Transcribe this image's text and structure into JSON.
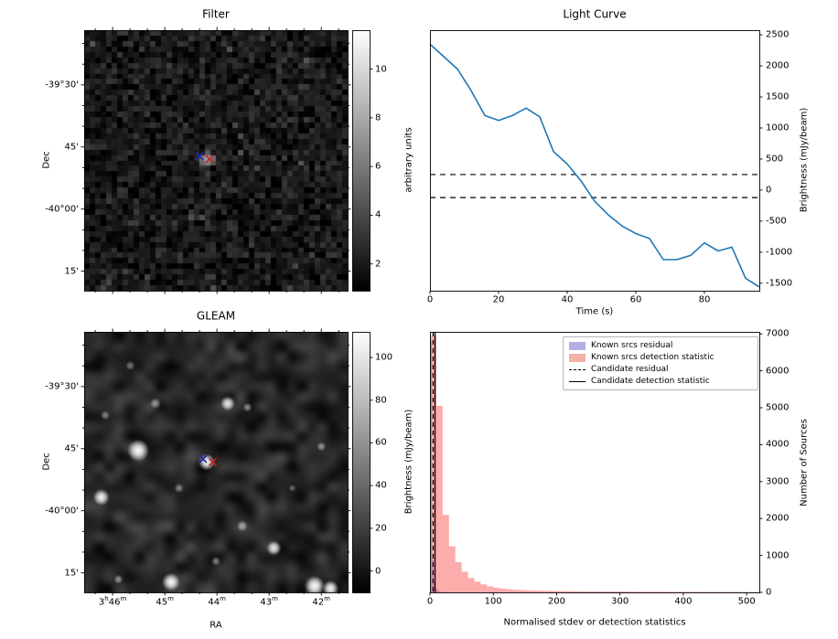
{
  "chart_data": [
    {
      "panel": "filter",
      "type": "heatmap",
      "title": "Filter",
      "xlabel": "",
      "ylabel": "Dec",
      "y_tick_labels": [
        "-39°30'",
        "45'",
        "-40°00'",
        "15'"
      ],
      "colorbar": {
        "label": "arbitrary units",
        "ticks": [
          2,
          4,
          6,
          8,
          10
        ],
        "vmin": 0.9,
        "vmax": 11.6
      },
      "image": "noisy dark grayscale filter map with faint central source",
      "markers": [
        {
          "name": "candidate",
          "symbol": "x",
          "color": "#2222aa",
          "fx": 0.4375,
          "fy": 0.484
        },
        {
          "name": "catalog",
          "symbol": "x",
          "color": "#cc2222",
          "fx": 0.4757,
          "fy": 0.4947
        }
      ]
    },
    {
      "panel": "light_curve",
      "type": "line",
      "title": "Light Curve",
      "xlabel": "Time (s)",
      "ylabel": "Brightness (mJy/beam)",
      "xlim": [
        0,
        96
      ],
      "ylim": [
        -1620,
        2575
      ],
      "x_ticks": [
        0,
        20,
        40,
        60,
        80
      ],
      "y_ticks": [
        2500,
        2000,
        1500,
        1000,
        500,
        0,
        -500,
        -1000,
        -1500
      ],
      "line_color": "#1f77b4",
      "series": [
        {
          "name": "candidate brightness",
          "x": [
            0,
            4,
            8,
            12,
            16,
            20,
            24,
            28,
            32,
            36,
            40,
            44,
            48,
            52,
            56,
            60,
            64,
            68,
            72,
            76,
            80,
            84,
            88,
            92,
            96
          ],
          "y": [
            2350,
            2150,
            1950,
            1600,
            1200,
            1120,
            1200,
            1320,
            1180,
            620,
            420,
            150,
            -180,
            -400,
            -580,
            -700,
            -780,
            -1120,
            -1120,
            -1050,
            -850,
            -980,
            -920,
            -1420,
            -1560
          ]
        }
      ],
      "threshold_lines": [
        {
          "style": "dashed",
          "y": 250
        },
        {
          "style": "dashed",
          "y": -120
        }
      ]
    },
    {
      "panel": "gleam",
      "type": "heatmap",
      "title": "GLEAM",
      "xlabel": "RA",
      "ylabel": "Dec",
      "x_tick_labels": [
        "3h46m",
        "45m",
        "44m",
        "43m",
        "42m"
      ],
      "y_tick_labels": [
        "-39°30'",
        "45'",
        "-40°00'",
        "15'"
      ],
      "colorbar": {
        "label": "Brightness (mJy/beam)",
        "ticks": [
          0,
          20,
          40,
          60,
          80,
          100
        ],
        "vmin": -10,
        "vmax": 112
      },
      "image": "smoothed grayscale GLEAM sky map with bright point sources",
      "markers": [
        {
          "name": "candidate",
          "symbol": "x",
          "color": "#2222aa",
          "fx": 0.451,
          "fy": 0.488
        },
        {
          "name": "catalog",
          "symbol": "x",
          "color": "#cc2222",
          "fx": 0.488,
          "fy": 0.5
        }
      ]
    },
    {
      "panel": "histogram",
      "type": "bar",
      "title": "",
      "xlabel": "Normalised stdev or detection statistics",
      "ylabel": "Number of Sources",
      "xlim": [
        0,
        520
      ],
      "ylim": [
        0,
        7055
      ],
      "x_ticks": [
        0,
        100,
        200,
        300,
        400,
        500
      ],
      "y_ticks": [
        0,
        1000,
        2000,
        3000,
        4000,
        5000,
        6000,
        7000
      ],
      "series": [
        {
          "name": "Known srcs residual",
          "color": "rgba(95,95,220,0.55)",
          "bin_start": 0,
          "bin_width": 3,
          "counts": [
            6800,
            900,
            260,
            90,
            40,
            18,
            8,
            4,
            2
          ]
        },
        {
          "name": "Known srcs detection statistic",
          "color": "rgba(250,90,85,0.5)",
          "bin_start": 0,
          "bin_width": 10,
          "counts": [
            6950,
            5050,
            2100,
            1250,
            820,
            560,
            390,
            290,
            215,
            160,
            125,
            100,
            85,
            72,
            62,
            55,
            50,
            46,
            42,
            39,
            36,
            34,
            32,
            30,
            28,
            27,
            26,
            25,
            24,
            23,
            22,
            21,
            20,
            20,
            19,
            19,
            18,
            18,
            17,
            17,
            16,
            16,
            15,
            15,
            14,
            14,
            13,
            13,
            12,
            12,
            11,
            11
          ]
        }
      ],
      "vlines": [
        {
          "label": "Candidate residual",
          "x": 5,
          "style": "dashed"
        },
        {
          "label": "Candidate detection statistic",
          "x": 8,
          "style": "solid"
        }
      ],
      "legend": [
        {
          "label": "Known srcs residual",
          "type": "patch",
          "color": "#b1b1e6"
        },
        {
          "label": "Known srcs detection statistic",
          "type": "patch",
          "color": "#f8b0ac"
        },
        {
          "label": "Candidate residual",
          "type": "line-dashed",
          "color": "#000000"
        },
        {
          "label": "Candidate detection statistic",
          "type": "line-solid",
          "color": "#000000"
        }
      ],
      "legend_position": "upper right"
    }
  ]
}
